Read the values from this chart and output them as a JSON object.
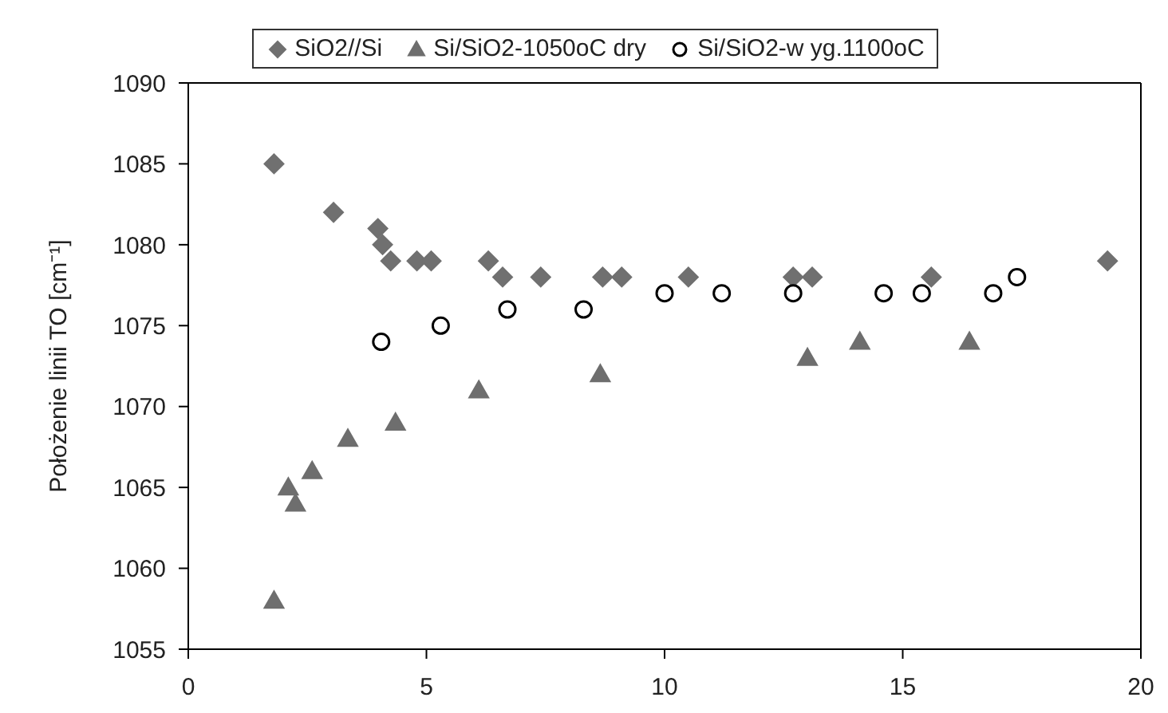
{
  "chart_data": {
    "type": "scatter",
    "ylabel": "Położenie linii TO [cm⁻¹]",
    "xlim": [
      0,
      20
    ],
    "xticks": [
      0,
      5,
      10,
      15,
      20
    ],
    "ylim": [
      1055,
      1090
    ],
    "yticks": [
      1055,
      1060,
      1065,
      1070,
      1075,
      1080,
      1085,
      1090
    ],
    "grid": false,
    "legend": "top",
    "series": [
      {
        "name": "SiO2//Si",
        "color": "#707070",
        "marker": "diamond",
        "x": [
          1.8,
          3.05,
          3.98,
          4.08,
          4.25,
          4.8,
          5.1,
          6.3,
          6.6,
          7.4,
          8.7,
          9.1,
          10.5,
          12.7,
          13.1,
          15.6,
          19.3
        ],
        "values": [
          1085,
          1082,
          1081,
          1080,
          1079,
          1079,
          1079,
          1079,
          1078,
          1078,
          1078,
          1078,
          1078,
          1078,
          1078,
          1078,
          1079
        ]
      },
      {
        "name": "Si/SiO2-1050oC dry",
        "color": "#6e6e6e",
        "marker": "triangle",
        "x": [
          1.8,
          2.1,
          2.25,
          2.6,
          3.35,
          4.35,
          6.1,
          8.65,
          13.0,
          14.1,
          16.4
        ],
        "values": [
          1058,
          1065,
          1064,
          1066,
          1068,
          1069,
          1071,
          1072,
          1073,
          1074,
          1074
        ]
      },
      {
        "name": "Si/SiO2-w yg.1100oC",
        "color": "#000000",
        "marker": "circle",
        "x": [
          4.05,
          5.3,
          6.7,
          8.3,
          10.0,
          11.2,
          12.7,
          14.6,
          15.4,
          16.9,
          17.4
        ],
        "values": [
          1074,
          1075,
          1076,
          1076,
          1077,
          1077,
          1077,
          1077,
          1077,
          1077,
          1078
        ]
      }
    ]
  }
}
